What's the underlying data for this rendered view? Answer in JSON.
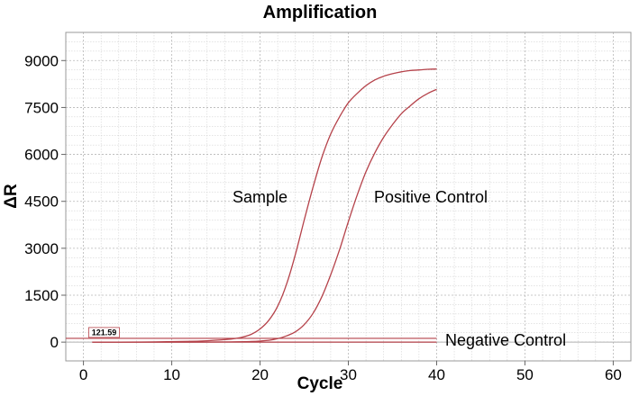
{
  "chart_data": {
    "type": "line",
    "title": "Amplification",
    "xlabel": "Cycle",
    "ylabel": "ΔR",
    "xlim": [
      -2,
      62
    ],
    "ylim": [
      -600,
      9900
    ],
    "xticks": [
      0,
      10,
      20,
      30,
      40,
      50,
      60
    ],
    "yticks": [
      0,
      1500,
      3000,
      4500,
      6000,
      7500,
      9000
    ],
    "grid": true,
    "threshold": {
      "value": 121.59,
      "label": "121.59"
    },
    "series": [
      {
        "name": "Sample",
        "x": [
          1,
          4,
          8,
          12,
          14,
          16,
          17,
          18,
          19,
          20,
          21,
          22,
          23,
          24,
          25,
          26,
          27,
          28,
          29,
          30,
          31,
          32,
          33,
          34,
          35,
          36,
          37,
          38,
          39,
          40
        ],
        "y": [
          0,
          2,
          8,
          25,
          45,
          80,
          110,
          160,
          250,
          420,
          700,
          1150,
          1850,
          2800,
          3900,
          4950,
          5900,
          6650,
          7200,
          7650,
          7950,
          8200,
          8380,
          8500,
          8580,
          8640,
          8680,
          8700,
          8720,
          8730
        ]
      },
      {
        "name": "Positive Control",
        "x": [
          1,
          6,
          12,
          16,
          19,
          21,
          22,
          23,
          24,
          25,
          26,
          27,
          28,
          29,
          30,
          31,
          32,
          33,
          34,
          35,
          36,
          37,
          38,
          39,
          40
        ],
        "y": [
          0,
          0,
          2,
          8,
          20,
          60,
          110,
          200,
          330,
          560,
          920,
          1450,
          2150,
          2950,
          3850,
          4700,
          5450,
          6050,
          6550,
          6950,
          7300,
          7550,
          7780,
          7950,
          8080
        ]
      },
      {
        "name": "Negative Control",
        "x": [
          1,
          10,
          20,
          30,
          40
        ],
        "y": [
          0,
          0,
          0,
          0,
          0
        ]
      }
    ],
    "annotations": [
      {
        "text": "Sample",
        "series": "Sample"
      },
      {
        "text": "Positive Control",
        "series": "Positive Control"
      },
      {
        "text": "Negative Control",
        "series": "Negative Control"
      }
    ]
  }
}
